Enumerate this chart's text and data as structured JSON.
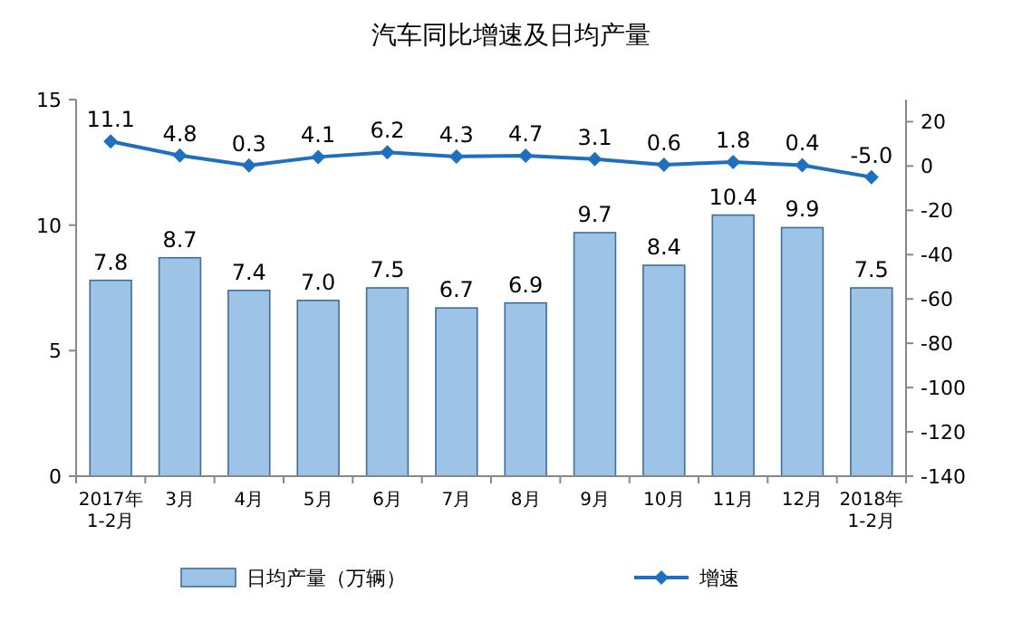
{
  "chart_data": {
    "type": "bar",
    "title": "汽车同比增速及日均产量",
    "categories": [
      "2017年\n1-2月",
      "3月",
      "4月",
      "5月",
      "6月",
      "7月",
      "8月",
      "9月",
      "10月",
      "11月",
      "12月",
      "2018年\n1-2月"
    ],
    "series": [
      {
        "name": "日均产量（万辆）",
        "color": "#9dc3e6",
        "values": [
          7.8,
          8.7,
          7.4,
          7.0,
          7.5,
          6.7,
          6.9,
          9.7,
          8.4,
          10.4,
          9.9,
          7.5
        ],
        "value_labels": [
          "7.8",
          "8.7",
          "7.4",
          "7.0",
          "7.5",
          "6.7",
          "6.9",
          "9.7",
          "8.4",
          "10.4",
          "9.9",
          "7.5"
        ]
      },
      {
        "name": "增速",
        "type": "line",
        "axis": "y2",
        "color": "#1f6fc0",
        "marker": "diamond",
        "values": [
          11.1,
          4.8,
          0.3,
          4.1,
          6.2,
          4.3,
          4.7,
          3.1,
          0.6,
          1.8,
          0.4,
          -5.0
        ],
        "value_labels": [
          "11.1",
          "4.8",
          "0.3",
          "4.1",
          "6.2",
          "4.3",
          "4.7",
          "3.1",
          "0.6",
          "1.8",
          "0.4",
          "-5.0"
        ]
      }
    ],
    "ylim": [
      0,
      15
    ],
    "yticks": [
      0,
      5,
      10,
      15
    ],
    "y2lim": [
      -140,
      30
    ],
    "y2ticks": [
      -140,
      -120,
      -100,
      -80,
      -60,
      -40,
      -20,
      0,
      20
    ],
    "legend": "bottom",
    "grid": false
  }
}
